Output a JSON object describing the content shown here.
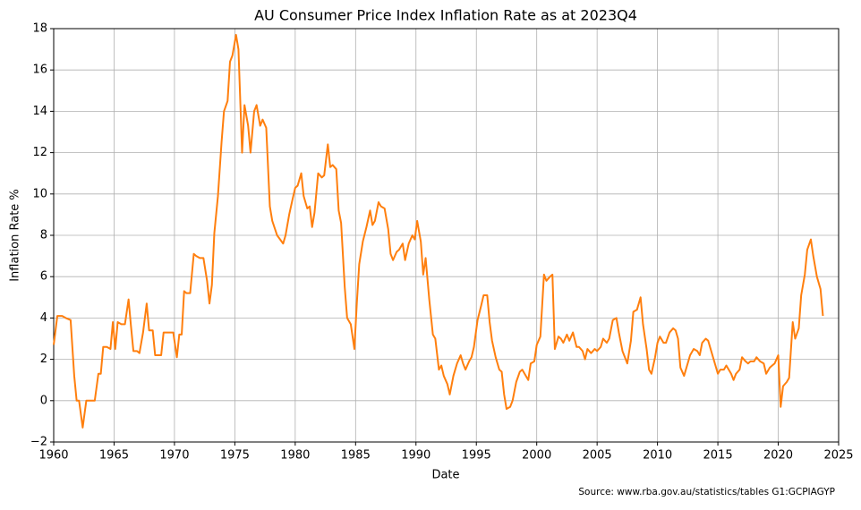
{
  "chart_data": {
    "type": "line",
    "title": "AU Consumer Price Index Inflation Rate as at 2023Q4",
    "xlabel": "Date",
    "ylabel": "Inflation Rate %",
    "source": "Source: www.rba.gov.au/statistics/tables G1:GCPIAGYP",
    "xlim": [
      1960,
      2025
    ],
    "xticks": [
      1960,
      1965,
      1970,
      1975,
      1980,
      1985,
      1990,
      1995,
      2000,
      2005,
      2010,
      2015,
      2020,
      2025
    ],
    "ylim": [
      -2,
      18
    ],
    "yticks": [
      {
        "value": -2,
        "label": "−2"
      },
      0,
      2,
      4,
      6,
      8,
      10,
      12,
      14,
      16,
      18
    ],
    "grid": true,
    "series": [
      {
        "color": "#ff7f0e",
        "x": [
          1960.0,
          1960.3,
          1960.7,
          1961.0,
          1961.4,
          1961.7,
          1961.9,
          1962.1,
          1962.4,
          1962.7,
          1963.4,
          1963.7,
          1963.9,
          1964.1,
          1964.4,
          1964.7,
          1964.9,
          1965.1,
          1965.3,
          1965.6,
          1965.9,
          1966.2,
          1966.4,
          1966.6,
          1966.9,
          1967.1,
          1967.4,
          1967.7,
          1967.9,
          1968.2,
          1968.4,
          1968.9,
          1969.1,
          1969.9,
          1970.2,
          1970.4,
          1970.6,
          1970.8,
          1971.0,
          1971.3,
          1971.6,
          1971.8,
          1972.1,
          1972.4,
          1972.7,
          1972.9,
          1973.1,
          1973.3,
          1973.6,
          1973.9,
          1974.1,
          1974.4,
          1974.6,
          1974.8,
          1975.1,
          1975.3,
          1975.6,
          1975.8,
          1976.1,
          1976.3,
          1976.6,
          1976.8,
          1977.1,
          1977.3,
          1977.6,
          1977.9,
          1978.1,
          1978.5,
          1979.0,
          1979.2,
          1979.5,
          1979.8,
          1980.0,
          1980.2,
          1980.5,
          1980.7,
          1981.0,
          1981.2,
          1981.4,
          1981.6,
          1981.9,
          1982.2,
          1982.4,
          1982.7,
          1982.9,
          1983.1,
          1983.4,
          1983.6,
          1983.8,
          1984.1,
          1984.3,
          1984.6,
          1984.9,
          1985.1,
          1985.3,
          1985.6,
          1985.9,
          1986.2,
          1986.4,
          1986.6,
          1986.9,
          1987.1,
          1987.4,
          1987.7,
          1987.9,
          1988.1,
          1988.4,
          1988.6,
          1988.9,
          1989.1,
          1989.4,
          1989.7,
          1989.9,
          1990.1,
          1990.4,
          1990.6,
          1990.8,
          1991.1,
          1991.4,
          1991.6,
          1991.9,
          1992.1,
          1992.3,
          1992.6,
          1992.8,
          1993.1,
          1993.4,
          1993.7,
          1993.9,
          1994.1,
          1994.4,
          1994.6,
          1994.8,
          1995.1,
          1995.4,
          1995.6,
          1995.9,
          1996.1,
          1996.3,
          1996.6,
          1996.9,
          1997.1,
          1997.3,
          1997.5,
          1997.8,
          1998.0,
          1998.3,
          1998.6,
          1998.8,
          1999.1,
          1999.3,
          1999.5,
          1999.8,
          2000.0,
          2000.3,
          2000.6,
          2000.8,
          2001.1,
          2001.3,
          2001.5,
          2001.8,
          2002.0,
          2002.2,
          2002.5,
          2002.7,
          2003.0,
          2003.3,
          2003.5,
          2003.8,
          2004.0,
          2004.2,
          2004.5,
          2004.8,
          2005.0,
          2005.3,
          2005.5,
          2005.8,
          2006.0,
          2006.3,
          2006.6,
          2006.8,
          2007.1,
          2007.3,
          2007.5,
          2007.8,
          2008.0,
          2008.3,
          2008.6,
          2008.8,
          2009.1,
          2009.3,
          2009.5,
          2009.8,
          2010.0,
          2010.2,
          2010.5,
          2010.7,
          2011.0,
          2011.3,
          2011.5,
          2011.7,
          2011.9,
          2012.2,
          2012.5,
          2012.7,
          2013.0,
          2013.3,
          2013.5,
          2013.7,
          2014.0,
          2014.2,
          2014.5,
          2014.8,
          2015.0,
          2015.2,
          2015.5,
          2015.7,
          2016.1,
          2016.3,
          2016.5,
          2016.8,
          2017.0,
          2017.3,
          2017.5,
          2017.7,
          2018.0,
          2018.2,
          2018.5,
          2018.8,
          2019.0,
          2019.3,
          2019.5,
          2019.7,
          2020.0,
          2020.2,
          2020.4,
          2020.7,
          2020.9,
          2021.2,
          2021.4,
          2021.7,
          2021.9,
          2022.2,
          2022.4,
          2022.7,
          2022.9,
          2023.2,
          2023.5,
          2023.7
        ],
        "values": [
          2.7,
          4.1,
          4.1,
          4.0,
          3.9,
          1.2,
          0.0,
          0.0,
          -1.3,
          0.0,
          0.0,
          1.3,
          1.3,
          2.6,
          2.6,
          2.5,
          3.8,
          2.5,
          3.8,
          3.7,
          3.7,
          4.9,
          3.6,
          2.4,
          2.4,
          2.3,
          3.3,
          4.7,
          3.4,
          3.4,
          2.2,
          2.2,
          3.3,
          3.3,
          2.1,
          3.2,
          3.2,
          5.3,
          5.2,
          5.2,
          7.1,
          7.0,
          6.9,
          6.9,
          5.8,
          4.7,
          5.6,
          8.1,
          9.9,
          12.5,
          14.0,
          14.5,
          16.4,
          16.7,
          17.7,
          17.0,
          12.0,
          14.3,
          13.3,
          12.0,
          14.0,
          14.3,
          13.3,
          13.6,
          13.2,
          9.4,
          8.7,
          8.0,
          7.6,
          8.0,
          9.0,
          9.8,
          10.3,
          10.4,
          11.0,
          9.9,
          9.3,
          9.4,
          8.4,
          9.1,
          11.0,
          10.8,
          10.9,
          12.4,
          11.3,
          11.4,
          11.2,
          9.2,
          8.6,
          5.5,
          4.0,
          3.7,
          2.5,
          4.7,
          6.6,
          7.7,
          8.4,
          9.2,
          8.5,
          8.7,
          9.6,
          9.4,
          9.3,
          8.3,
          7.1,
          6.8,
          7.2,
          7.3,
          7.6,
          6.8,
          7.6,
          8.0,
          7.8,
          8.7,
          7.7,
          6.1,
          6.9,
          4.9,
          3.2,
          3.0,
          1.5,
          1.7,
          1.2,
          0.8,
          0.3,
          1.2,
          1.8,
          2.2,
          1.8,
          1.5,
          1.9,
          2.1,
          2.6,
          3.9,
          4.6,
          5.1,
          5.1,
          3.8,
          2.9,
          2.1,
          1.5,
          1.4,
          0.3,
          -0.4,
          -0.3,
          0.0,
          0.9,
          1.4,
          1.5,
          1.2,
          1.0,
          1.8,
          1.9,
          2.7,
          3.1,
          6.1,
          5.8,
          6.0,
          6.1,
          2.5,
          3.1,
          3.0,
          2.8,
          3.2,
          2.9,
          3.3,
          2.6,
          2.6,
          2.4,
          2.0,
          2.5,
          2.3,
          2.5,
          2.4,
          2.6,
          3.0,
          2.8,
          3.0,
          3.9,
          4.0,
          3.3,
          2.4,
          2.1,
          1.8,
          2.9,
          4.3,
          4.4,
          5.0,
          3.7,
          2.5,
          1.5,
          1.3,
          2.1,
          2.8,
          3.1,
          2.8,
          2.8,
          3.3,
          3.5,
          3.4,
          3.0,
          1.6,
          1.2,
          1.8,
          2.2,
          2.5,
          2.4,
          2.2,
          2.8,
          3.0,
          2.9,
          2.3,
          1.7,
          1.3,
          1.5,
          1.5,
          1.7,
          1.3,
          1.0,
          1.3,
          1.5,
          2.1,
          1.9,
          1.8,
          1.9,
          1.9,
          2.1,
          1.9,
          1.8,
          1.3,
          1.6,
          1.7,
          1.8,
          2.2,
          -0.3,
          0.7,
          0.9,
          1.1,
          3.8,
          3.0,
          3.5,
          5.1,
          6.1,
          7.3,
          7.8,
          7.0,
          6.0,
          5.4,
          4.1
        ]
      }
    ]
  }
}
